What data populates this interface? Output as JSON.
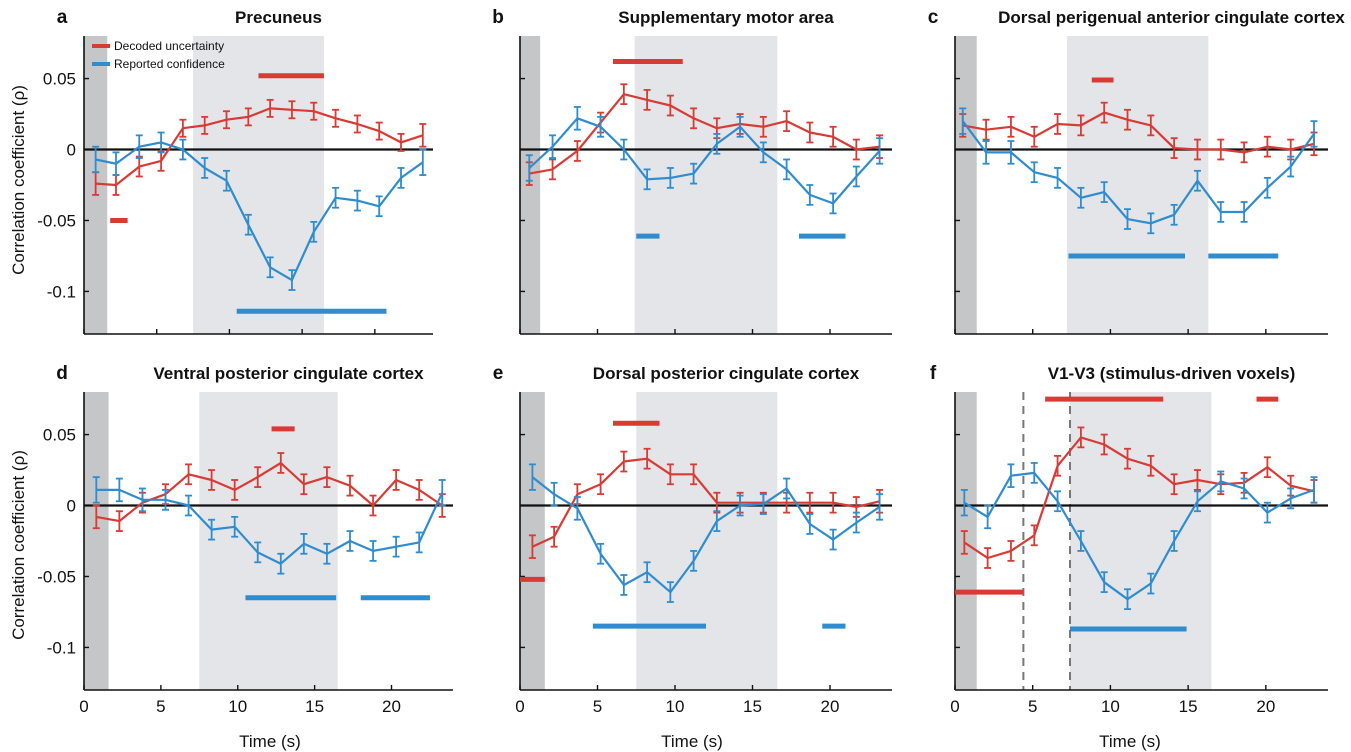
{
  "colors": {
    "uncertainty": "#d93a34",
    "confidence": "#2f8ccf",
    "shade_light": "#e4e5e8",
    "shade_dark": "#c5c6c8",
    "zero_line": "#111111"
  },
  "legend": {
    "uncertainty": "Decoded uncertainty",
    "confidence": "Reported confidence"
  },
  "shared": {
    "ylabel": "Correlation coefficient (ρ)",
    "xlabel": "Time (s)",
    "yticks": [
      0.05,
      0,
      -0.05,
      -0.1
    ],
    "ytick_labels": [
      "0.05",
      "0",
      "-0.05",
      "-0.1"
    ],
    "xticks": [
      0,
      5,
      10,
      15,
      20
    ],
    "xtick_labels": [
      "0",
      "5",
      "10",
      "15",
      "20"
    ]
  },
  "chart_data": [
    {
      "type": "line",
      "letter": "a",
      "title": "Precuneus",
      "xlabel": "",
      "ylabel": "Correlation coefficient (ρ)",
      "xlim": [
        0,
        24
      ],
      "ylim": [
        -0.13,
        0.08
      ],
      "shaded_dark": [
        0,
        1.6
      ],
      "shaded_light": [
        7.5,
        16.5
      ],
      "dashed_lines": [],
      "x": [
        0.8,
        2.2,
        3.8,
        5.3,
        6.8,
        8.3,
        9.8,
        11.3,
        12.8,
        14.3,
        15.8,
        17.3,
        18.8,
        20.3,
        21.8,
        23.3
      ],
      "series": [
        {
          "name": "Decoded uncertainty",
          "values": [
            -0.024,
            -0.025,
            -0.012,
            -0.008,
            0.015,
            0.017,
            0.021,
            0.023,
            0.029,
            0.028,
            0.027,
            0.022,
            0.018,
            0.013,
            0.005,
            0.01
          ],
          "errors": [
            0.008,
            0.007,
            0.007,
            0.007,
            0.006,
            0.006,
            0.006,
            0.006,
            0.006,
            0.006,
            0.006,
            0.006,
            0.006,
            0.006,
            0.006,
            0.008
          ]
        },
        {
          "name": "Reported confidence",
          "values": [
            -0.007,
            -0.01,
            0.002,
            0.005,
            0.0,
            -0.013,
            -0.022,
            -0.053,
            -0.083,
            -0.092,
            -0.058,
            -0.034,
            -0.036,
            -0.04,
            -0.02,
            -0.009
          ],
          "errors": [
            0.009,
            0.008,
            0.008,
            0.007,
            0.007,
            0.007,
            0.007,
            0.007,
            0.007,
            0.007,
            0.007,
            0.007,
            0.007,
            0.007,
            0.007,
            0.009
          ]
        }
      ],
      "sig_bars": {
        "uncertainty": [
          {
            "from": 1.8,
            "to": 3.0,
            "y": -0.05
          },
          {
            "from": 12.0,
            "to": 16.5,
            "y": 0.052
          }
        ],
        "confidence": [
          {
            "from": 10.5,
            "to": 20.8,
            "y": -0.114
          }
        ]
      }
    },
    {
      "type": "line",
      "letter": "b",
      "title": "Supplementary motor area",
      "xlabel": "",
      "ylabel": "",
      "xlim": [
        0,
        24
      ],
      "ylim": [
        -0.13,
        0.08
      ],
      "shaded_dark": [
        0,
        1.3
      ],
      "shaded_light": [
        7.4,
        16.6
      ],
      "dashed_lines": [],
      "x": [
        0.6,
        2.1,
        3.7,
        5.2,
        6.7,
        8.2,
        9.7,
        11.2,
        12.7,
        14.2,
        15.7,
        17.2,
        18.7,
        20.2,
        21.7,
        23.2
      ],
      "series": [
        {
          "name": "Decoded uncertainty",
          "values": [
            -0.017,
            -0.014,
            -0.001,
            0.019,
            0.039,
            0.035,
            0.031,
            0.022,
            0.015,
            0.018,
            0.016,
            0.02,
            0.012,
            0.009,
            0.0,
            0.002
          ],
          "errors": [
            0.008,
            0.007,
            0.007,
            0.007,
            0.007,
            0.007,
            0.007,
            0.007,
            0.007,
            0.007,
            0.007,
            0.007,
            0.007,
            0.007,
            0.007,
            0.008
          ]
        },
        {
          "name": "Reported confidence",
          "values": [
            -0.013,
            0.002,
            0.022,
            0.016,
            0.0,
            -0.021,
            -0.02,
            -0.017,
            0.004,
            0.016,
            -0.002,
            -0.014,
            -0.032,
            -0.038,
            -0.019,
            -0.001
          ],
          "errors": [
            0.009,
            0.008,
            0.008,
            0.007,
            0.007,
            0.007,
            0.007,
            0.007,
            0.007,
            0.007,
            0.007,
            0.007,
            0.007,
            0.007,
            0.007,
            0.009
          ]
        }
      ],
      "sig_bars": {
        "uncertainty": [
          {
            "from": 6.0,
            "to": 10.5,
            "y": 0.062
          }
        ],
        "confidence": [
          {
            "from": 7.5,
            "to": 9.0,
            "y": -0.061
          },
          {
            "from": 18.0,
            "to": 21.0,
            "y": -0.061
          }
        ]
      }
    },
    {
      "type": "line",
      "letter": "c",
      "title": "Dorsal perigenual anterior cingulate cortex",
      "xlabel": "",
      "ylabel": "",
      "xlim": [
        0,
        24
      ],
      "ylim": [
        -0.13,
        0.08
      ],
      "shaded_dark": [
        0,
        1.4
      ],
      "shaded_light": [
        7.2,
        16.3
      ],
      "dashed_lines": [],
      "x": [
        0.5,
        2.0,
        3.6,
        5.1,
        6.6,
        8.1,
        9.6,
        11.1,
        12.6,
        14.1,
        15.6,
        17.1,
        18.6,
        20.1,
        21.6,
        23.1
      ],
      "series": [
        {
          "name": "Decoded uncertainty",
          "values": [
            0.017,
            0.014,
            0.016,
            0.009,
            0.018,
            0.017,
            0.026,
            0.021,
            0.017,
            0.001,
            0.0,
            0.0,
            -0.002,
            0.002,
            0.0,
            0.004
          ],
          "errors": [
            0.008,
            0.007,
            0.007,
            0.007,
            0.007,
            0.007,
            0.007,
            0.007,
            0.007,
            0.007,
            0.007,
            0.007,
            0.007,
            0.007,
            0.007,
            0.008
          ]
        },
        {
          "name": "Reported confidence",
          "values": [
            0.02,
            -0.002,
            -0.002,
            -0.016,
            -0.02,
            -0.034,
            -0.03,
            -0.049,
            -0.052,
            -0.046,
            -0.022,
            -0.044,
            -0.044,
            -0.027,
            -0.012,
            0.011
          ],
          "errors": [
            0.009,
            0.008,
            0.008,
            0.007,
            0.007,
            0.007,
            0.007,
            0.007,
            0.007,
            0.007,
            0.007,
            0.007,
            0.007,
            0.007,
            0.007,
            0.009
          ]
        }
      ],
      "sig_bars": {
        "uncertainty": [
          {
            "from": 8.8,
            "to": 10.2,
            "y": 0.049
          }
        ],
        "confidence": [
          {
            "from": 7.3,
            "to": 14.8,
            "y": -0.075
          },
          {
            "from": 16.3,
            "to": 20.8,
            "y": -0.075
          }
        ]
      }
    },
    {
      "type": "line",
      "letter": "d",
      "title": "Ventral posterior cingulate cortex",
      "xlabel": "Time (s)",
      "ylabel": "Correlation coefficient (ρ)",
      "xlim": [
        0,
        24
      ],
      "ylim": [
        -0.13,
        0.08
      ],
      "shaded_dark": [
        0,
        1.6
      ],
      "shaded_light": [
        7.5,
        16.5
      ],
      "dashed_lines": [],
      "x": [
        0.8,
        2.3,
        3.8,
        5.3,
        6.8,
        8.3,
        9.8,
        11.3,
        12.8,
        14.3,
        15.8,
        17.3,
        18.8,
        20.3,
        21.8,
        23.3
      ],
      "series": [
        {
          "name": "Decoded uncertainty",
          "values": [
            -0.008,
            -0.011,
            0.002,
            0.008,
            0.022,
            0.018,
            0.011,
            0.02,
            0.03,
            0.015,
            0.02,
            0.014,
            0.0,
            0.018,
            0.011,
            0.0
          ],
          "errors": [
            0.008,
            0.007,
            0.007,
            0.007,
            0.007,
            0.007,
            0.007,
            0.007,
            0.007,
            0.007,
            0.007,
            0.007,
            0.007,
            0.007,
            0.007,
            0.008
          ]
        },
        {
          "name": "Reported confidence",
          "values": [
            0.011,
            0.011,
            0.004,
            0.004,
            0.0,
            -0.017,
            -0.015,
            -0.033,
            -0.041,
            -0.027,
            -0.034,
            -0.025,
            -0.032,
            -0.029,
            -0.026,
            0.009
          ],
          "errors": [
            0.009,
            0.008,
            0.008,
            0.007,
            0.007,
            0.007,
            0.007,
            0.007,
            0.007,
            0.007,
            0.007,
            0.007,
            0.007,
            0.007,
            0.007,
            0.009
          ]
        }
      ],
      "sig_bars": {
        "uncertainty": [
          {
            "from": 12.2,
            "to": 13.7,
            "y": 0.054
          }
        ],
        "confidence": [
          {
            "from": 10.5,
            "to": 16.4,
            "y": -0.065
          },
          {
            "from": 18.0,
            "to": 22.5,
            "y": -0.065
          }
        ]
      }
    },
    {
      "type": "line",
      "letter": "e",
      "title": "Dorsal posterior cingulate cortex",
      "xlabel": "Time (s)",
      "ylabel": "",
      "xlim": [
        0,
        24
      ],
      "ylim": [
        -0.13,
        0.08
      ],
      "shaded_dark": [
        0,
        1.6
      ],
      "shaded_light": [
        7.5,
        16.6
      ],
      "dashed_lines": [],
      "x": [
        0.8,
        2.2,
        3.7,
        5.2,
        6.7,
        8.2,
        9.7,
        11.2,
        12.7,
        14.2,
        15.7,
        17.2,
        18.7,
        20.2,
        21.7,
        23.2
      ],
      "series": [
        {
          "name": "Decoded uncertainty",
          "values": [
            -0.029,
            -0.022,
            0.008,
            0.015,
            0.031,
            0.033,
            0.022,
            0.022,
            0.002,
            0.002,
            0.002,
            0.002,
            0.002,
            0.002,
            -0.001,
            0.003
          ],
          "errors": [
            0.008,
            0.007,
            0.007,
            0.007,
            0.007,
            0.007,
            0.007,
            0.007,
            0.007,
            0.007,
            0.007,
            0.007,
            0.007,
            0.007,
            0.007,
            0.008
          ]
        },
        {
          "name": "Reported confidence",
          "values": [
            0.02,
            0.008,
            -0.002,
            -0.034,
            -0.056,
            -0.047,
            -0.061,
            -0.039,
            -0.011,
            0.0,
            0.001,
            0.012,
            -0.013,
            -0.024,
            -0.012,
            -0.001
          ],
          "errors": [
            0.009,
            0.008,
            0.008,
            0.007,
            0.007,
            0.007,
            0.007,
            0.007,
            0.007,
            0.007,
            0.007,
            0.007,
            0.007,
            0.007,
            0.007,
            0.009
          ]
        }
      ],
      "sig_bars": {
        "uncertainty": [
          {
            "from": 0.0,
            "to": 1.6,
            "y": -0.052
          },
          {
            "from": 6.0,
            "to": 9.0,
            "y": 0.058
          }
        ],
        "confidence": [
          {
            "from": 4.7,
            "to": 12.0,
            "y": -0.085
          },
          {
            "from": 19.5,
            "to": 21.0,
            "y": -0.085
          }
        ]
      }
    },
    {
      "type": "line",
      "letter": "f",
      "title": "V1-V3 (stimulus-driven voxels)",
      "xlabel": "Time (s)",
      "ylabel": "",
      "xlim": [
        0,
        24
      ],
      "ylim": [
        -0.13,
        0.08
      ],
      "shaded_dark": [
        0,
        1.4
      ],
      "shaded_light": [
        7.4,
        16.5
      ],
      "dashed_lines": [
        4.4,
        7.4
      ],
      "x": [
        0.6,
        2.1,
        3.6,
        5.1,
        6.6,
        8.1,
        9.6,
        11.1,
        12.6,
        14.1,
        15.6,
        17.1,
        18.6,
        20.1,
        21.6,
        23.1
      ],
      "series": [
        {
          "name": "Decoded uncertainty",
          "values": [
            -0.026,
            -0.037,
            -0.032,
            -0.021,
            0.028,
            0.048,
            0.043,
            0.033,
            0.028,
            0.015,
            0.018,
            0.015,
            0.016,
            0.027,
            0.014,
            0.01
          ],
          "errors": [
            0.008,
            0.007,
            0.007,
            0.007,
            0.007,
            0.007,
            0.007,
            0.007,
            0.007,
            0.007,
            0.007,
            0.007,
            0.007,
            0.007,
            0.007,
            0.008
          ]
        },
        {
          "name": "Reported confidence",
          "values": [
            0.002,
            -0.008,
            0.021,
            0.023,
            0.003,
            -0.025,
            -0.054,
            -0.066,
            -0.055,
            -0.025,
            0.003,
            0.017,
            0.012,
            -0.005,
            0.005,
            0.011
          ],
          "errors": [
            0.009,
            0.008,
            0.008,
            0.007,
            0.007,
            0.007,
            0.007,
            0.007,
            0.007,
            0.007,
            0.007,
            0.007,
            0.007,
            0.007,
            0.007,
            0.009
          ]
        }
      ],
      "sig_bars": {
        "uncertainty": [
          {
            "from": 0.0,
            "to": 4.4,
            "y": -0.061
          },
          {
            "from": 5.8,
            "to": 13.4,
            "y": 0.075
          },
          {
            "from": 19.4,
            "to": 20.8,
            "y": 0.075
          }
        ],
        "confidence": [
          {
            "from": 7.4,
            "to": 14.9,
            "y": -0.087
          }
        ]
      }
    }
  ]
}
